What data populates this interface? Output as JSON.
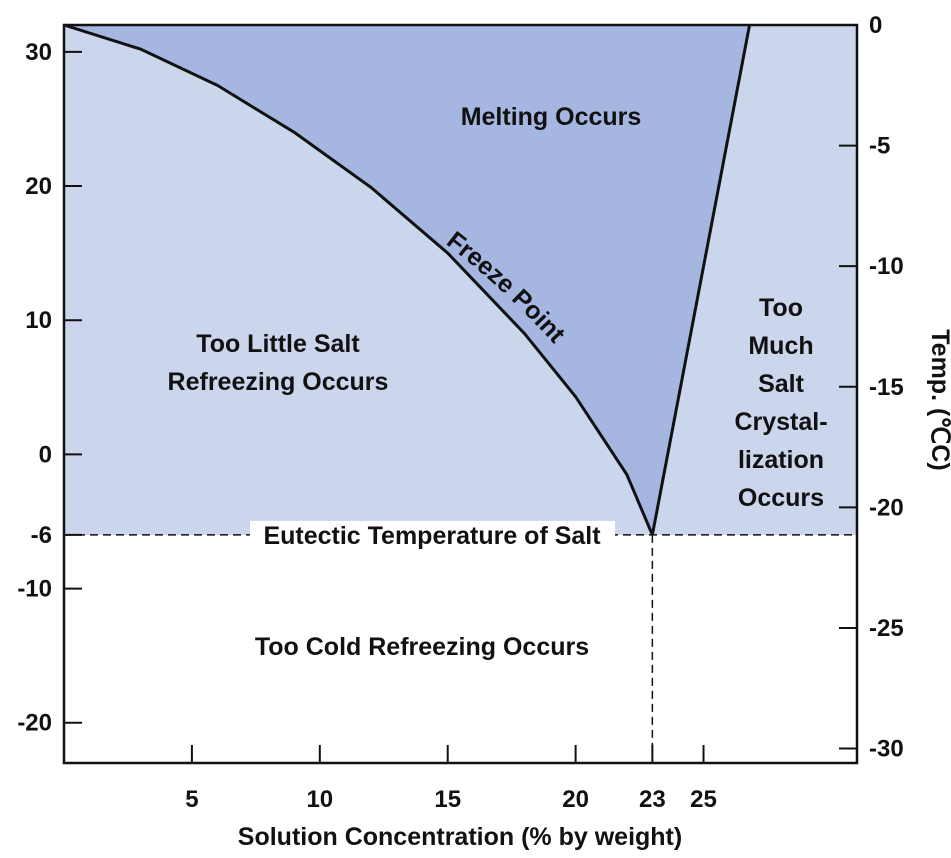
{
  "chart_data": {
    "type": "area",
    "title": "",
    "xlabel": "Solution Concentration (% by weight)",
    "ylabel_left": "",
    "ylabel_right": "Temp. (℃C)",
    "xlim": [
      0,
      31
    ],
    "ylim_left": [
      -23,
      32
    ],
    "ylim_right": [
      -30.6,
      0
    ],
    "x_ticks": [
      5,
      10,
      15,
      20,
      23,
      25
    ],
    "y_ticks_left": [
      30,
      20,
      10,
      0,
      -6,
      -10,
      -20
    ],
    "y_ticks_right": [
      0,
      -5,
      -10,
      -15,
      -20,
      -25,
      -30
    ],
    "eutectic": {
      "x": 23,
      "y": -6,
      "label": "Eutectic Temperature of Salt"
    },
    "freeze_point_curve": {
      "label": "Freeze Point",
      "x": [
        0,
        3,
        6,
        9,
        12,
        15,
        18,
        20,
        22,
        23
      ],
      "y": [
        32,
        30.2,
        27.5,
        24,
        19.9,
        15,
        9,
        4.3,
        -1.5,
        -6
      ]
    },
    "crystallization_line": {
      "x": [
        23,
        26.8
      ],
      "y": [
        -6,
        32
      ]
    },
    "regions": [
      {
        "name": "melting",
        "label": "Melting Occurs"
      },
      {
        "name": "too-little-salt",
        "label": "Too Little Salt\nRefreezing Occurs"
      },
      {
        "name": "too-much-salt",
        "label": "Too\nMuch\nSalt\nCrystal-\nlization\nOccurs"
      },
      {
        "name": "too-cold",
        "label": "Too Cold Refreezing Occurs"
      }
    ],
    "colors": {
      "melting": "#a5b6e0",
      "refreezing": "#cbd5ec",
      "line": "#111111",
      "background": "#ffffff"
    },
    "grid": false,
    "legend": "none"
  }
}
